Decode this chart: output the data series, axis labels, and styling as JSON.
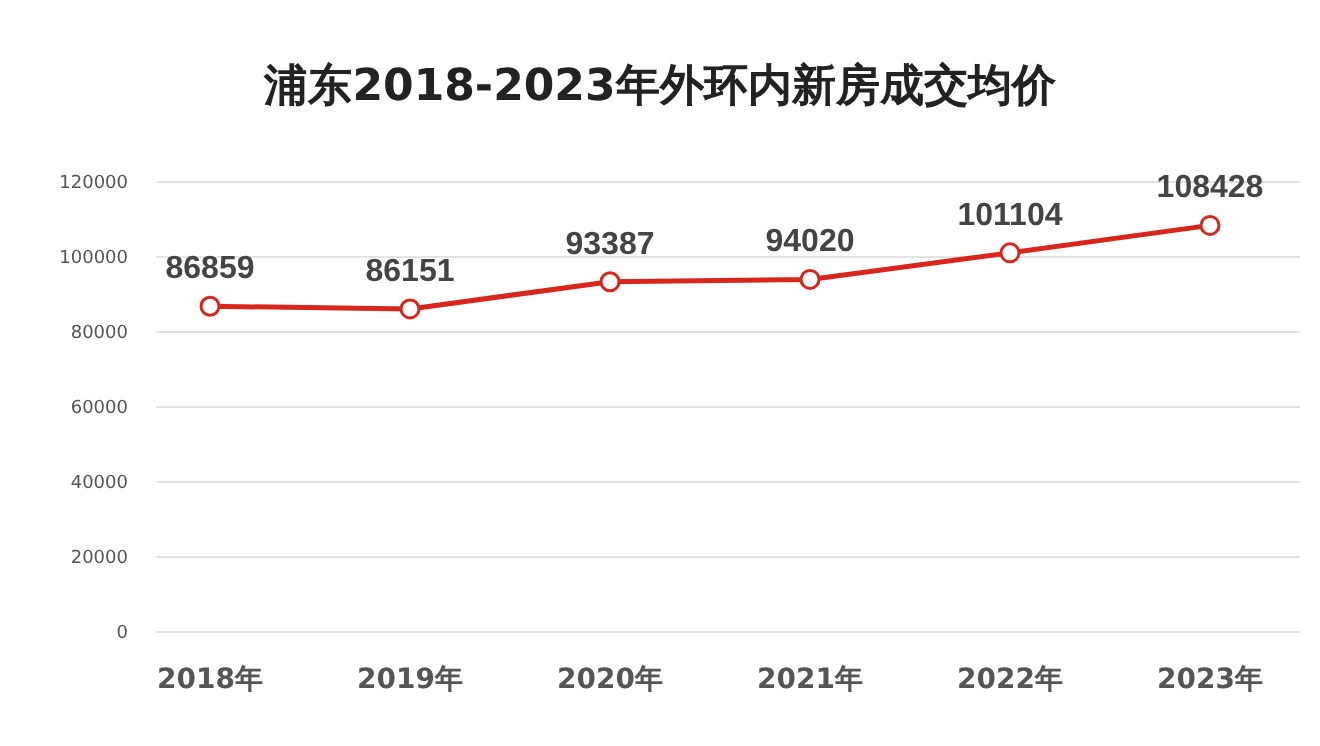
{
  "chart_data": {
    "type": "line",
    "title": "浦东2018-2023年外环内新房成交均价",
    "categories": [
      "2018年",
      "2019年",
      "2020年",
      "2021年",
      "2022年",
      "2023年"
    ],
    "series": [
      {
        "color": "#d9261c",
        "values": [
          86859,
          86151,
          93387,
          94020,
          101104,
          108428
        ]
      }
    ],
    "ylim": [
      0,
      120000
    ],
    "yticks": [
      0,
      20000,
      40000,
      60000,
      80000,
      100000,
      120000
    ],
    "grid": "y",
    "marker": "circle",
    "data_labels": true
  }
}
